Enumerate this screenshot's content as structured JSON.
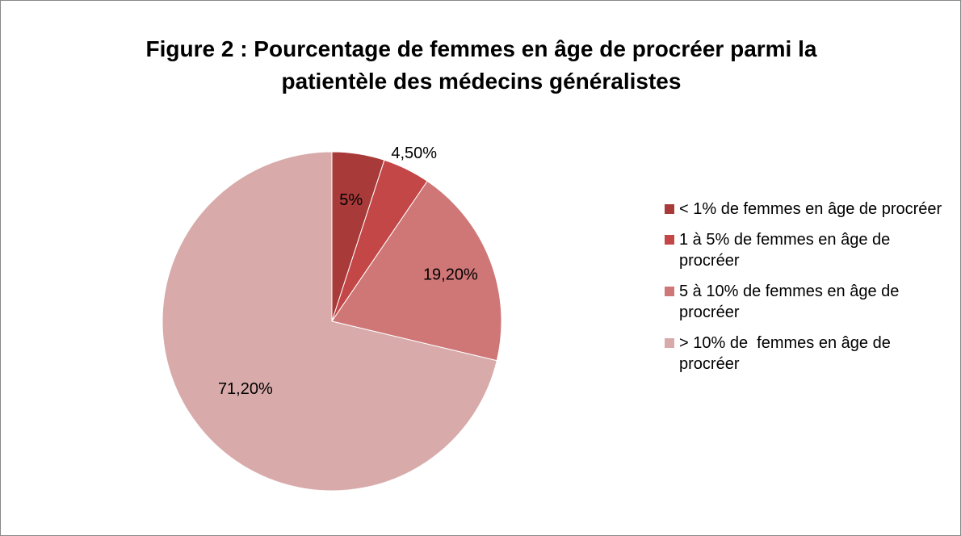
{
  "chart_data": {
    "type": "pie",
    "title": "Figure 2 : Pourcentage de femmes en âge de procréer parmi la patientèle des médecins généralistes",
    "categories": [
      "< 1% de femmes en âge de procréer",
      "1 à 5% de femmes en âge de procréer",
      "5 à 10% de femmes en âge de procréer",
      "> 10% de  femmes en âge de procréer"
    ],
    "values": [
      5,
      4.5,
      19.2,
      71.2
    ],
    "value_labels": [
      "5%",
      "4,50%",
      "19,20%",
      "71,20%"
    ],
    "colors": [
      "#a93a3a",
      "#c44747",
      "#cf7676",
      "#d8aaaa"
    ],
    "legend": "right"
  }
}
